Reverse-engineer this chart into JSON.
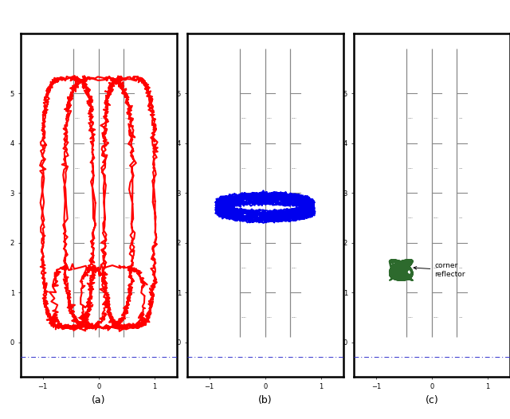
{
  "fig_width": 6.4,
  "fig_height": 5.26,
  "dpi": 100,
  "background": "#ffffff",
  "subplots": [
    {
      "label": "(a)",
      "flight_color": "#ff0000",
      "flight_lw": 1.5
    },
    {
      "label": "(b)",
      "flight_color": "#0000ee",
      "flight_lw": 1.5
    },
    {
      "label": "(c)",
      "flight_color": "#2d6a2d",
      "flight_lw": 1.2,
      "annotation": "corner\nreflector"
    }
  ],
  "xlim": [
    -0.1,
    1.1
  ],
  "ylim": [
    0.0,
    1.0
  ],
  "ruler_color": "#888888",
  "radar_color": "#3333cc",
  "wall_color": "#000000"
}
